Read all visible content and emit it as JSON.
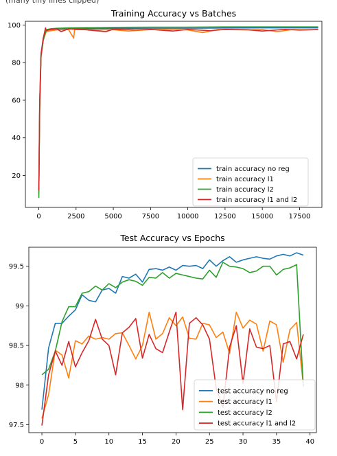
{
  "header_clip": "(many tiny lines clipped)",
  "chart_data": [
    {
      "type": "line",
      "title": "Training Accuracy vs Batches",
      "xlabel": "",
      "ylabel": "",
      "xlim": [
        -900,
        19000
      ],
      "ylim": [
        3,
        102
      ],
      "xticks": [
        0,
        2500,
        5000,
        7500,
        10000,
        12500,
        15000,
        17500
      ],
      "yticks": [
        20,
        40,
        60,
        80,
        100
      ],
      "legend_loc": "lower right",
      "series": [
        {
          "name": "train accuracy no reg",
          "color": "#1f77b4",
          "x": [
            0,
            60,
            150,
            300,
            500,
            800,
            1200,
            2000,
            3000,
            5000,
            7500,
            10000,
            12500,
            15000,
            17500,
            18750
          ],
          "y": [
            12,
            60,
            85,
            93,
            97.2,
            97.6,
            97.9,
            98.0,
            98.1,
            98.2,
            98.3,
            98.3,
            98.4,
            98.5,
            98.5,
            98.5
          ]
        },
        {
          "name": "train accuracy l1",
          "color": "#ff7f0e",
          "x": [
            0,
            60,
            150,
            300,
            500,
            800,
            1200,
            2000,
            2340,
            2400,
            3000,
            4000,
            5000,
            6000,
            7500,
            9000,
            10000,
            11000,
            12000,
            12500,
            14000,
            15000,
            16000,
            17000,
            18000,
            18750
          ],
          "y": [
            10,
            58,
            84,
            92,
            96.5,
            97.0,
            97.4,
            97.6,
            93.0,
            97.5,
            97.6,
            97.4,
            97.5,
            96.8,
            97.6,
            97.6,
            97.4,
            96.0,
            97.6,
            97.6,
            97.4,
            97.6,
            96.5,
            97.6,
            97.5,
            97.6
          ]
        },
        {
          "name": "train accuracy l2",
          "color": "#2ca02c",
          "x": [
            0,
            60,
            150,
            300,
            500,
            800,
            1200,
            2000,
            3000,
            5000,
            7500,
            10000,
            12500,
            15000,
            17500,
            18750
          ],
          "y": [
            8,
            55,
            83,
            92,
            97.5,
            98.0,
            98.3,
            98.5,
            98.6,
            98.8,
            98.9,
            98.9,
            99.0,
            99.0,
            99.0,
            99.0
          ]
        },
        {
          "name": "train accuracy l1 and l2",
          "color": "#d62728",
          "x": [
            0,
            60,
            150,
            300,
            450,
            500,
            800,
            1200,
            1500,
            2000,
            3000,
            4500,
            5000,
            6500,
            7500,
            9000,
            10000,
            11500,
            12500,
            14000,
            15000,
            16500,
            17500,
            18750
          ],
          "y": [
            12,
            58,
            84,
            93,
            98.5,
            97.0,
            97.8,
            98.0,
            96.5,
            98.0,
            97.6,
            96.5,
            97.8,
            97.4,
            97.7,
            96.8,
            97.7,
            97.0,
            97.7,
            97.5,
            96.8,
            97.7,
            97.3,
            97.6
          ]
        }
      ]
    },
    {
      "type": "line",
      "title": "Test Accuracy vs Epochs",
      "xlabel": "",
      "ylabel": "",
      "xlim": [
        -1.95,
        40.95
      ],
      "ylim": [
        97.4,
        99.74
      ],
      "xticks": [
        0,
        5,
        10,
        15,
        20,
        25,
        30,
        35,
        40
      ],
      "yticks": [
        97.5,
        98.0,
        98.5,
        99.0,
        99.5
      ],
      "legend_loc": "lower right",
      "series": [
        {
          "name": "test accuracy no reg",
          "color": "#1f77b4",
          "x": [
            0,
            1,
            2,
            3,
            4,
            5,
            6,
            7,
            8,
            9,
            10,
            11,
            12,
            13,
            14,
            15,
            16,
            17,
            18,
            19,
            20,
            21,
            22,
            23,
            24,
            25,
            26,
            27,
            28,
            29,
            30,
            31,
            32,
            33,
            34,
            35,
            36,
            37,
            38,
            39
          ],
          "y": [
            97.69,
            98.47,
            98.78,
            98.78,
            98.87,
            98.95,
            99.14,
            99.07,
            99.05,
            99.2,
            99.22,
            99.16,
            99.37,
            99.35,
            99.4,
            99.3,
            99.46,
            99.47,
            99.45,
            99.49,
            99.45,
            99.51,
            99.5,
            99.51,
            99.47,
            99.58,
            99.5,
            99.57,
            99.62,
            99.55,
            99.58,
            99.6,
            99.62,
            99.6,
            99.59,
            99.63,
            99.65,
            99.63,
            99.67,
            99.64
          ]
        },
        {
          "name": "test accuracy l1",
          "color": "#ff7f0e",
          "x": [
            0,
            1,
            2,
            3,
            4,
            5,
            6,
            7,
            8,
            9,
            10,
            11,
            12,
            13,
            14,
            15,
            16,
            17,
            18,
            19,
            20,
            21,
            22,
            23,
            24,
            25,
            26,
            27,
            28,
            29,
            30,
            31,
            32,
            33,
            34,
            35,
            36,
            37,
            38,
            39
          ],
          "y": [
            97.58,
            97.88,
            98.44,
            98.38,
            98.09,
            98.56,
            98.52,
            98.62,
            98.58,
            98.6,
            98.58,
            98.65,
            98.66,
            98.5,
            98.33,
            98.5,
            98.92,
            98.58,
            98.65,
            98.85,
            98.75,
            98.86,
            98.59,
            98.58,
            98.78,
            98.76,
            98.6,
            98.67,
            98.4,
            98.92,
            98.72,
            98.82,
            98.77,
            98.43,
            98.81,
            98.76,
            98.29,
            98.7,
            98.79,
            98.0
          ]
        },
        {
          "name": "test accuracy l2",
          "color": "#2ca02c",
          "x": [
            0,
            1,
            2,
            3,
            4,
            5,
            6,
            7,
            8,
            9,
            10,
            11,
            12,
            13,
            14,
            15,
            16,
            17,
            18,
            19,
            20,
            21,
            22,
            23,
            24,
            25,
            26,
            27,
            28,
            29,
            30,
            31,
            32,
            33,
            34,
            35,
            36,
            37,
            38,
            39
          ],
          "y": [
            98.13,
            98.2,
            98.43,
            98.8,
            98.99,
            98.99,
            99.16,
            99.18,
            99.25,
            99.2,
            99.28,
            99.23,
            99.3,
            99.33,
            99.31,
            99.26,
            99.36,
            99.35,
            99.42,
            99.35,
            99.41,
            99.39,
            99.37,
            99.35,
            99.34,
            99.45,
            99.36,
            99.55,
            99.5,
            99.49,
            99.47,
            99.42,
            99.44,
            99.5,
            99.5,
            99.39,
            99.46,
            99.48,
            99.52,
            97.98
          ]
        },
        {
          "name": "test accuracy l1 and l2",
          "color": "#d62728",
          "x": [
            0,
            1,
            2,
            3,
            4,
            5,
            6,
            7,
            8,
            9,
            10,
            11,
            12,
            13,
            14,
            15,
            16,
            17,
            18,
            19,
            20,
            21,
            22,
            23,
            24,
            25,
            26,
            27,
            28,
            29,
            30,
            31,
            32,
            33,
            34,
            35,
            36,
            37,
            38,
            39
          ],
          "y": [
            97.49,
            98.13,
            98.43,
            98.25,
            98.55,
            98.23,
            98.41,
            98.56,
            98.83,
            98.58,
            98.5,
            98.13,
            98.66,
            98.73,
            98.84,
            98.34,
            98.64,
            98.46,
            98.41,
            98.67,
            98.92,
            97.69,
            98.78,
            98.85,
            98.76,
            98.58,
            97.96,
            97.72,
            98.48,
            98.75,
            98.02,
            98.71,
            98.48,
            98.46,
            98.5,
            97.79,
            98.52,
            98.55,
            98.33,
            98.64
          ]
        }
      ]
    }
  ]
}
